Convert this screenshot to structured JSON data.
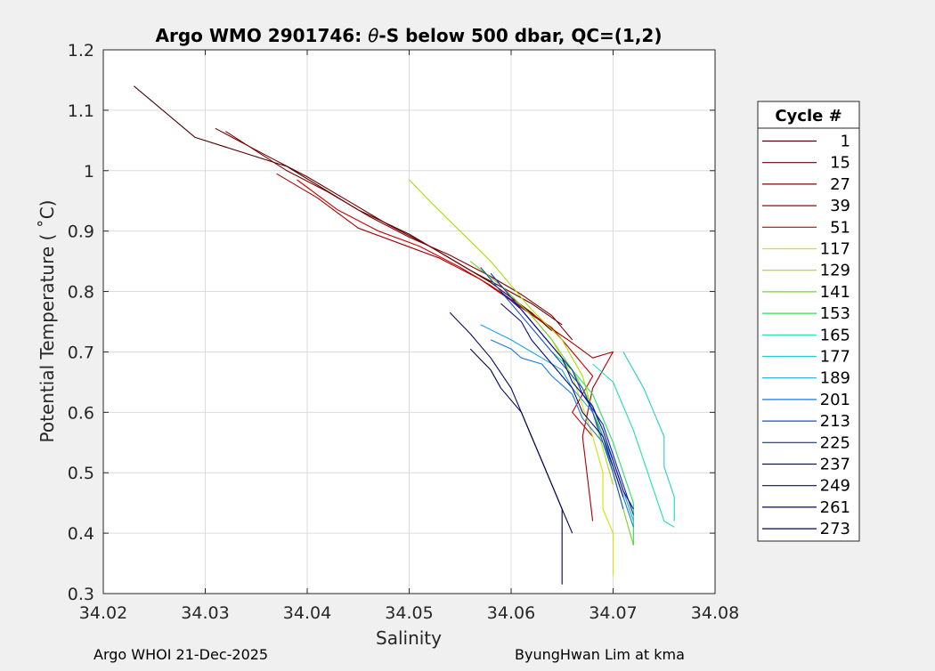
{
  "chart_data": {
    "type": "line",
    "title": "Argo WMO 2901746: θ-S below 500 dbar,  QC=(1,2)",
    "title_parts": {
      "prefix": "Argo WMO 2901746: ",
      "theta": "θ",
      "suffix": "-S below 500 dbar,  QC=(1,2)"
    },
    "xlabel": "Salinity",
    "ylabel": "Potential Temperature ( ˚C)",
    "xlim": [
      34.02,
      34.08
    ],
    "ylim": [
      0.3,
      1.2
    ],
    "xticks": [
      34.02,
      34.03,
      34.04,
      34.05,
      34.06,
      34.07,
      34.08
    ],
    "xtick_labels": [
      "34.02",
      "34.03",
      "34.04",
      "34.05",
      "34.06",
      "34.07",
      "34.08"
    ],
    "yticks": [
      0.3,
      0.4,
      0.5,
      0.6,
      0.7,
      0.8,
      0.9,
      1.0,
      1.1,
      1.2
    ],
    "ytick_labels": [
      "0.3",
      "0.4",
      "0.5",
      "0.6",
      "0.7",
      "0.8",
      "0.9",
      "1",
      "1.1",
      "1.2"
    ],
    "grid": true,
    "legend_title": "Cycle #",
    "legend_position": "outside-right",
    "series": [
      {
        "name": "1",
        "color": "#4d0000",
        "points": [
          [
            34.023,
            1.14
          ],
          [
            34.029,
            1.055
          ],
          [
            34.038,
            1.007
          ],
          [
            34.045,
            0.935
          ],
          [
            34.05,
            0.895
          ],
          [
            34.055,
            0.845
          ],
          [
            34.058,
            0.815
          ],
          [
            34.06,
            0.79
          ],
          [
            34.062,
            0.765
          ],
          [
            34.064,
            0.735
          ]
        ]
      },
      {
        "name": "15",
        "color": "#6a0000",
        "points": [
          [
            34.031,
            1.07
          ],
          [
            34.036,
            1.025
          ],
          [
            34.04,
            0.99
          ],
          [
            34.044,
            0.95
          ],
          [
            34.048,
            0.91
          ],
          [
            34.052,
            0.875
          ],
          [
            34.056,
            0.835
          ],
          [
            34.059,
            0.808
          ],
          [
            34.062,
            0.78
          ],
          [
            34.065,
            0.745
          ]
        ]
      },
      {
        "name": "27",
        "color": "#860000",
        "points": [
          [
            34.032,
            1.065
          ],
          [
            34.038,
            1.0
          ],
          [
            34.042,
            0.965
          ],
          [
            34.046,
            0.925
          ],
          [
            34.05,
            0.89
          ],
          [
            34.054,
            0.86
          ],
          [
            34.058,
            0.825
          ],
          [
            34.061,
            0.795
          ],
          [
            34.064,
            0.76
          ],
          [
            34.066,
            0.72
          ]
        ]
      },
      {
        "name": "39",
        "color": "#a80000",
        "points": [
          [
            34.037,
            0.995
          ],
          [
            34.041,
            0.955
          ],
          [
            34.045,
            0.905
          ],
          [
            34.049,
            0.88
          ],
          [
            34.053,
            0.855
          ],
          [
            34.057,
            0.82
          ],
          [
            34.06,
            0.785
          ],
          [
            34.063,
            0.75
          ],
          [
            34.066,
            0.715
          ],
          [
            34.068,
            0.69
          ],
          [
            34.07,
            0.7
          ],
          [
            34.068,
            0.64
          ],
          [
            34.067,
            0.56
          ],
          [
            34.068,
            0.42
          ]
        ]
      },
      {
        "name": "51",
        "color": "#cc0000",
        "points": [
          [
            34.039,
            0.985
          ],
          [
            34.043,
            0.935
          ],
          [
            34.047,
            0.9
          ],
          [
            34.051,
            0.875
          ],
          [
            34.055,
            0.84
          ],
          [
            34.058,
            0.81
          ],
          [
            34.061,
            0.775
          ],
          [
            34.064,
            0.74
          ],
          [
            34.066,
            0.7
          ],
          [
            34.068,
            0.66
          ],
          [
            34.066,
            0.6
          ],
          [
            34.068,
            0.56
          ]
        ]
      },
      {
        "name": "117",
        "color": "#dddd00",
        "points": [
          [
            34.062,
            0.76
          ],
          [
            34.064,
            0.72
          ],
          [
            34.066,
            0.66
          ],
          [
            34.067,
            0.61
          ],
          [
            34.068,
            0.56
          ],
          [
            34.069,
            0.5
          ],
          [
            34.069,
            0.44
          ],
          [
            34.07,
            0.4
          ],
          [
            34.07,
            0.33
          ]
        ]
      },
      {
        "name": "129",
        "color": "#a8e000",
        "points": [
          [
            34.05,
            0.985
          ],
          [
            34.052,
            0.95
          ],
          [
            34.055,
            0.9
          ],
          [
            34.058,
            0.85
          ],
          [
            34.06,
            0.81
          ],
          [
            34.062,
            0.77
          ],
          [
            34.065,
            0.72
          ],
          [
            34.067,
            0.66
          ],
          [
            34.068,
            0.6
          ],
          [
            34.069,
            0.54
          ],
          [
            34.07,
            0.48
          ]
        ]
      },
      {
        "name": "141",
        "color": "#70d820",
        "points": [
          [
            34.056,
            0.85
          ],
          [
            34.059,
            0.81
          ],
          [
            34.062,
            0.76
          ],
          [
            34.064,
            0.72
          ],
          [
            34.066,
            0.67
          ],
          [
            34.068,
            0.61
          ],
          [
            34.069,
            0.56
          ],
          [
            34.07,
            0.5
          ],
          [
            34.071,
            0.44
          ],
          [
            34.072,
            0.38
          ]
        ]
      },
      {
        "name": "153",
        "color": "#30e060",
        "points": [
          [
            34.064,
            0.7
          ],
          [
            34.066,
            0.67
          ],
          [
            34.068,
            0.63
          ],
          [
            34.069,
            0.59
          ],
          [
            34.07,
            0.55
          ],
          [
            34.071,
            0.5
          ],
          [
            34.072,
            0.45
          ],
          [
            34.072,
            0.38
          ]
        ]
      },
      {
        "name": "165",
        "color": "#20e0a8",
        "points": [
          [
            34.068,
            0.68
          ],
          [
            34.07,
            0.65
          ],
          [
            34.071,
            0.61
          ],
          [
            34.072,
            0.57
          ],
          [
            34.073,
            0.52
          ],
          [
            34.074,
            0.47
          ],
          [
            34.075,
            0.42
          ],
          [
            34.076,
            0.41
          ]
        ]
      },
      {
        "name": "177",
        "color": "#20d0d0",
        "points": [
          [
            34.071,
            0.7
          ],
          [
            34.072,
            0.67
          ],
          [
            34.073,
            0.64
          ],
          [
            34.074,
            0.6
          ],
          [
            34.075,
            0.56
          ],
          [
            34.075,
            0.51
          ],
          [
            34.076,
            0.46
          ],
          [
            34.076,
            0.42
          ]
        ]
      },
      {
        "name": "189",
        "color": "#1aa6e6",
        "points": [
          [
            34.057,
            0.745
          ],
          [
            34.06,
            0.72
          ],
          [
            34.062,
            0.7
          ],
          [
            34.063,
            0.69
          ],
          [
            34.065,
            0.67
          ],
          [
            34.066,
            0.64
          ],
          [
            34.068,
            0.6
          ],
          [
            34.069,
            0.56
          ],
          [
            34.07,
            0.52
          ],
          [
            34.071,
            0.47
          ],
          [
            34.072,
            0.42
          ]
        ]
      },
      {
        "name": "201",
        "color": "#1a7adc",
        "points": [
          [
            34.058,
            0.72
          ],
          [
            34.06,
            0.705
          ],
          [
            34.061,
            0.69
          ],
          [
            34.063,
            0.68
          ],
          [
            34.064,
            0.66
          ],
          [
            34.066,
            0.63
          ],
          [
            34.067,
            0.59
          ],
          [
            34.069,
            0.55
          ],
          [
            34.07,
            0.51
          ],
          [
            34.071,
            0.46
          ],
          [
            34.072,
            0.41
          ]
        ]
      },
      {
        "name": "213",
        "color": "#1450d0",
        "points": [
          [
            34.057,
            0.84
          ],
          [
            34.059,
            0.8
          ],
          [
            34.061,
            0.76
          ],
          [
            34.063,
            0.72
          ],
          [
            34.065,
            0.68
          ],
          [
            34.067,
            0.64
          ],
          [
            34.068,
            0.6
          ],
          [
            34.069,
            0.55
          ],
          [
            34.07,
            0.5
          ],
          [
            34.071,
            0.44
          ]
        ]
      },
      {
        "name": "225",
        "color": "#0e28c0",
        "points": [
          [
            34.058,
            0.83
          ],
          [
            34.06,
            0.79
          ],
          [
            34.062,
            0.75
          ],
          [
            34.064,
            0.71
          ],
          [
            34.066,
            0.67
          ],
          [
            34.067,
            0.63
          ],
          [
            34.069,
            0.58
          ],
          [
            34.07,
            0.53
          ],
          [
            34.071,
            0.48
          ],
          [
            34.072,
            0.43
          ]
        ]
      },
      {
        "name": "237",
        "color": "#0a0aa0",
        "points": [
          [
            34.059,
            0.8
          ],
          [
            34.061,
            0.77
          ],
          [
            34.063,
            0.73
          ],
          [
            34.065,
            0.69
          ],
          [
            34.066,
            0.65
          ],
          [
            34.068,
            0.61
          ],
          [
            34.069,
            0.57
          ],
          [
            34.07,
            0.52
          ],
          [
            34.071,
            0.47
          ],
          [
            34.072,
            0.44
          ]
        ]
      },
      {
        "name": "249",
        "color": "#080a80",
        "points": [
          [
            34.059,
            0.78
          ],
          [
            34.061,
            0.75
          ],
          [
            34.062,
            0.72
          ],
          [
            34.064,
            0.68
          ],
          [
            34.066,
            0.64
          ],
          [
            34.067,
            0.6
          ],
          [
            34.069,
            0.56
          ],
          [
            34.07,
            0.51
          ],
          [
            34.071,
            0.46
          ]
        ]
      },
      {
        "name": "261",
        "color": "#060862",
        "points": [
          [
            34.054,
            0.765
          ],
          [
            34.056,
            0.73
          ],
          [
            34.058,
            0.69
          ],
          [
            34.06,
            0.64
          ],
          [
            34.061,
            0.6
          ],
          [
            34.062,
            0.56
          ],
          [
            34.063,
            0.52
          ],
          [
            34.064,
            0.48
          ],
          [
            34.065,
            0.44
          ],
          [
            34.066,
            0.4
          ]
        ]
      },
      {
        "name": "273",
        "color": "#04064a",
        "points": [
          [
            34.056,
            0.705
          ],
          [
            34.058,
            0.67
          ],
          [
            34.059,
            0.64
          ],
          [
            34.061,
            0.6
          ],
          [
            34.062,
            0.56
          ],
          [
            34.063,
            0.52
          ],
          [
            34.064,
            0.48
          ],
          [
            34.065,
            0.44
          ],
          [
            34.065,
            0.38
          ],
          [
            34.065,
            0.315
          ]
        ]
      }
    ]
  },
  "footer": {
    "left": "Argo WHOI 21-Dec-2025",
    "right": "ByungHwan Lim at kma"
  }
}
